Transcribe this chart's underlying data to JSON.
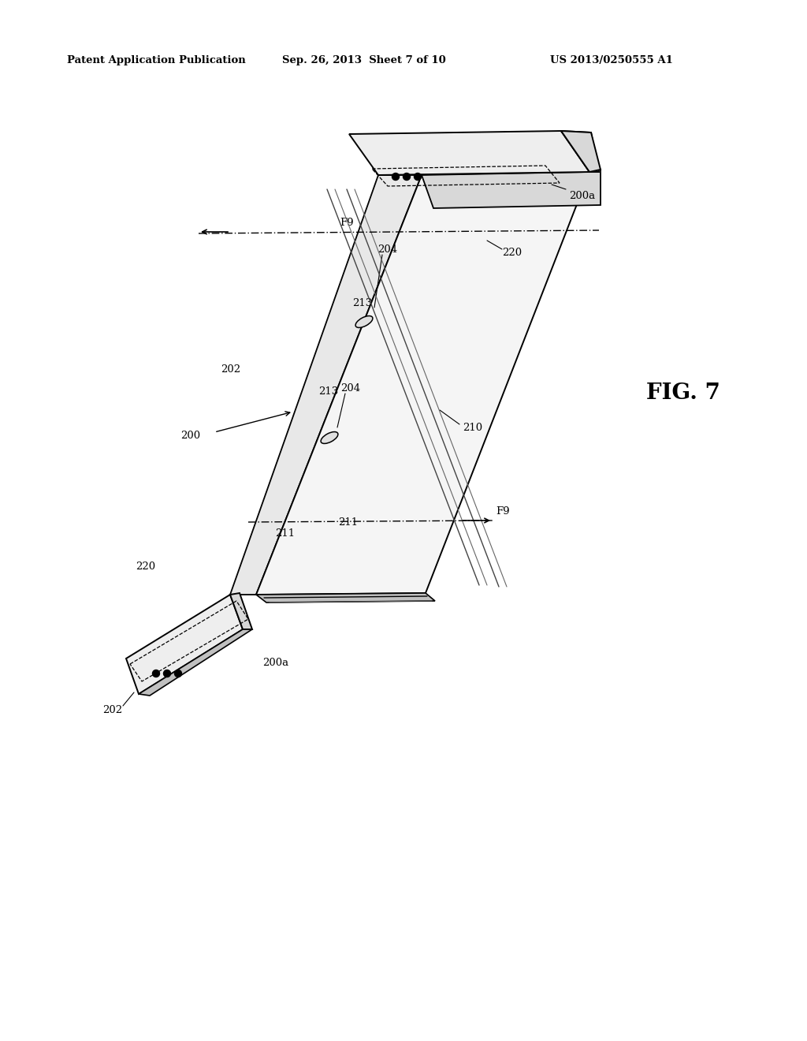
{
  "bg_color": "#ffffff",
  "header_left": "Patent Application Publication",
  "header_mid": "Sep. 26, 2013  Sheet 7 of 10",
  "header_right": "US 2013/0250555 A1",
  "fig_label": "FIG. 7",
  "line_color": "#000000",
  "light_gray": "#eeeeee",
  "mid_gray": "#d8d8d8",
  "dark_gray": "#c0c0c0"
}
